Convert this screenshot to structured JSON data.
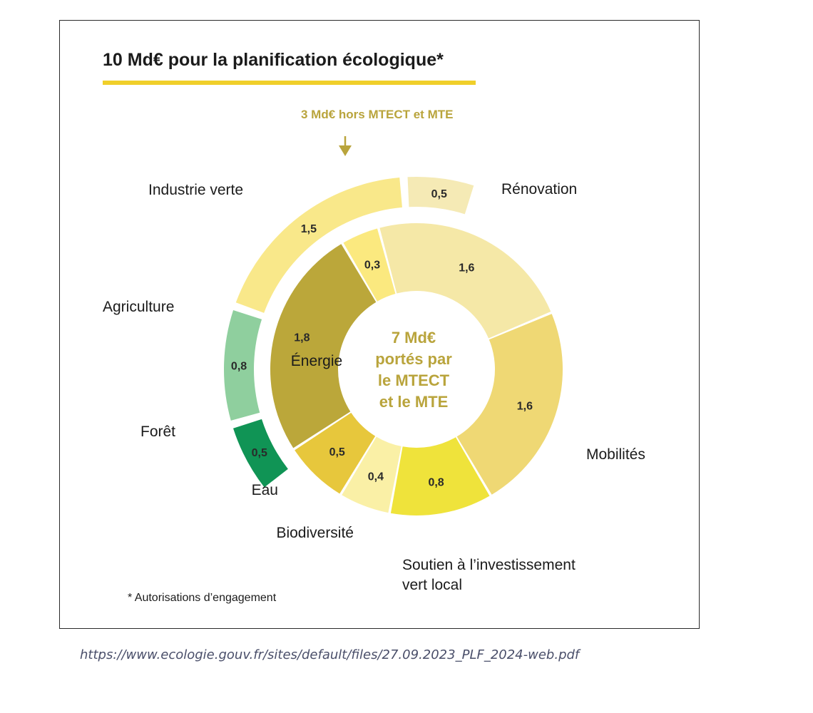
{
  "chart_data": {
    "type": "pie",
    "title": "10 Md€ pour la planification écologique*",
    "center_label": [
      "7 Md€",
      "portés par",
      "le MTECT",
      "et le MTE"
    ],
    "outer_annotation": "3 Md€ hors MTECT et MTE",
    "footnote": "* Autorisations d’engagement",
    "inner_ring": [
      {
        "name": "",
        "value": 0.3,
        "value_label": "0,3",
        "color": "#fbe97f"
      },
      {
        "name": "Rénovation",
        "value": 1.6,
        "value_label": "1,6",
        "color": "#f5e8a7"
      },
      {
        "name": "Mobilités",
        "value": 1.6,
        "value_label": "1,6",
        "color": "#efd874"
      },
      {
        "name": "Soutien à l’investissement vert local",
        "value": 0.8,
        "value_label": "0,8",
        "color": "#efe33b"
      },
      {
        "name": "Biodiversité",
        "value": 0.4,
        "value_label": "0,4",
        "color": "#faf0a6"
      },
      {
        "name": "Eau",
        "value": 0.5,
        "value_label": "0,5",
        "color": "#e7c73c"
      },
      {
        "name": "Énergie",
        "value": 1.8,
        "value_label": "1,8",
        "color": "#bba73a"
      }
    ],
    "outer_ring": [
      {
        "name": "Forêt",
        "value": 0.5,
        "value_label": "0,5",
        "color": "#109455"
      },
      {
        "name": "Agriculture",
        "value": 0.8,
        "value_label": "0,8",
        "color": "#8fcf9e"
      },
      {
        "name": "Industrie verte",
        "value": 1.5,
        "value_label": "1,5",
        "color": "#f9e88a"
      },
      {
        "name": "",
        "value": 0.5,
        "value_label": "0,5",
        "color": "#f5eab5"
      }
    ],
    "colors": {
      "title_underline": "#f0cf2a",
      "annotation": "#b9a43c",
      "center_text": "#b9a43c"
    }
  },
  "source_url": "https://www.ecologie.gouv.fr/sites/default/files/27.09.2023_PLF_2024-web.pdf"
}
